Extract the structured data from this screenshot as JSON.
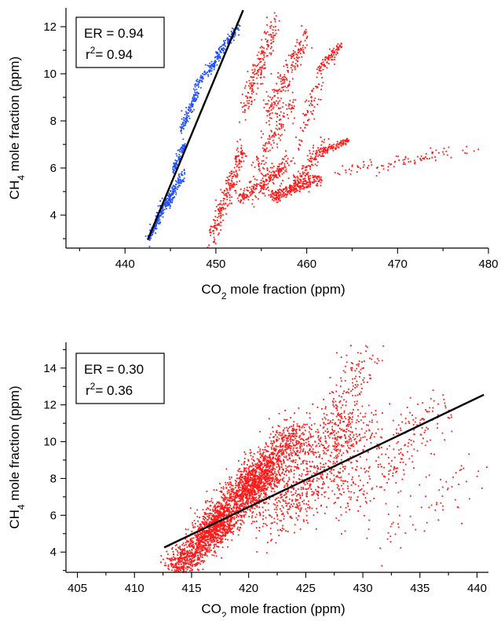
{
  "chart_data": [
    {
      "type": "scatter",
      "title": "",
      "xlabel_parts": [
        "CO",
        "2",
        " mole fraction (ppm)"
      ],
      "ylabel_parts": [
        "CH",
        "4",
        " mole fraction (ppm)"
      ],
      "xlim": [
        433.5,
        480
      ],
      "ylim": [
        2.6,
        12.8
      ],
      "xticks": [
        440,
        450,
        460,
        470,
        480
      ],
      "yticks": [
        4,
        6,
        8,
        10,
        12
      ],
      "grid": false,
      "stats": {
        "er_label": "ER = 0.94",
        "r2_prefix": "r",
        "r2_exp": "2",
        "r2_value": "= 0.94"
      },
      "fit_line": {
        "x": [
          442.5,
          453.0
        ],
        "y": [
          2.95,
          12.7
        ],
        "color": "#000000"
      },
      "series": [
        {
          "color": "#1f4fff",
          "clusters": [
            {
              "x": [
                442.6,
                443.8
              ],
              "y": [
                3.0,
                3.9
              ],
              "n": 90,
              "sx": 0.25,
              "sy": 0.22
            },
            {
              "x": [
                443.5,
                445.0
              ],
              "y": [
                3.9,
                4.8
              ],
              "n": 110,
              "sx": 0.3,
              "sy": 0.25
            },
            {
              "x": [
                444.6,
                446.4
              ],
              "y": [
                4.4,
                5.8
              ],
              "n": 110,
              "sx": 0.3,
              "sy": 0.25
            },
            {
              "x": [
                445.2,
                446.6
              ],
              "y": [
                5.8,
                7.0
              ],
              "n": 90,
              "sx": 0.25,
              "sy": 0.22
            },
            {
              "x": [
                446.2,
                448.0
              ],
              "y": [
                7.6,
                9.3
              ],
              "n": 110,
              "sx": 0.3,
              "sy": 0.22
            },
            {
              "x": [
                447.8,
                450.5
              ],
              "y": [
                9.5,
                10.8
              ],
              "n": 110,
              "sx": 0.35,
              "sy": 0.22
            },
            {
              "x": [
                450.2,
                452.6
              ],
              "y": [
                10.9,
                12.0
              ],
              "n": 90,
              "sx": 0.3,
              "sy": 0.2
            }
          ]
        },
        {
          "color": "#ff1a1a",
          "clusters": [
            {
              "x": [
                449.5,
                453.0
              ],
              "y": [
                3.0,
                6.8
              ],
              "n": 230,
              "sx": 0.6,
              "sy": 0.5
            },
            {
              "x": [
                452.5,
                458.0
              ],
              "y": [
                4.6,
                6.2
              ],
              "n": 240,
              "sx": 0.8,
              "sy": 0.35
            },
            {
              "x": [
                456.0,
                461.5
              ],
              "y": [
                4.7,
                5.6
              ],
              "n": 260,
              "sx": 0.7,
              "sy": 0.25
            },
            {
              "x": [
                458.5,
                462.0
              ],
              "y": [
                5.3,
                7.0
              ],
              "n": 120,
              "sx": 0.5,
              "sy": 0.35
            },
            {
              "x": [
                453.0,
                456.5
              ],
              "y": [
                8.5,
                12.2
              ],
              "n": 190,
              "sx": 0.6,
              "sy": 0.6
            },
            {
              "x": [
                455.5,
                460.0
              ],
              "y": [
                8.2,
                11.6
              ],
              "n": 190,
              "sx": 0.7,
              "sy": 0.6
            },
            {
              "x": [
                461.0,
                463.8
              ],
              "y": [
                10.1,
                11.2
              ],
              "n": 90,
              "sx": 0.4,
              "sy": 0.2
            },
            {
              "x": [
                461.5,
                464.5
              ],
              "y": [
                6.6,
                7.2
              ],
              "n": 90,
              "sx": 0.5,
              "sy": 0.15
            },
            {
              "x": [
                464.0,
                477.5
              ],
              "y": [
                5.8,
                6.8
              ],
              "n": 90,
              "sx": 3.0,
              "sy": 0.25
            },
            {
              "x": [
                454.5,
                458.5
              ],
              "y": [
                6.0,
                8.8
              ],
              "n": 130,
              "sx": 0.7,
              "sy": 0.6
            },
            {
              "x": [
                459.0,
                461.5
              ],
              "y": [
                7.0,
                9.8
              ],
              "n": 70,
              "sx": 0.5,
              "sy": 0.6
            }
          ]
        }
      ]
    },
    {
      "type": "scatter",
      "title": "",
      "xlabel_parts": [
        "CO",
        "2",
        " mole fraction (ppm)"
      ],
      "ylabel_parts": [
        "CH",
        "4",
        " mole fraction (ppm)"
      ],
      "xlim": [
        404,
        441
      ],
      "ylim": [
        2.9,
        15.4
      ],
      "xticks": [
        405,
        410,
        415,
        420,
        425,
        430,
        435,
        440
      ],
      "yticks": [
        4,
        6,
        8,
        10,
        12,
        14
      ],
      "grid": false,
      "stats": {
        "er_label": "ER = 0.30",
        "r2_prefix": "r",
        "r2_exp": "2",
        "r2_value": "= 0.36"
      },
      "fit_line": {
        "x": [
          412.6,
          440.6
        ],
        "y": [
          4.25,
          12.55
        ],
        "color": "#000000"
      },
      "series": [
        {
          "color": "#ff1a1a",
          "clusters": [
            {
              "x": [
                413.5,
                418.0
              ],
              "y": [
                3.0,
                6.0
              ],
              "n": 900,
              "sx": 1.3,
              "sy": 0.9
            },
            {
              "x": [
                416.5,
                421.5
              ],
              "y": [
                5.0,
                8.5
              ],
              "n": 1100,
              "sx": 1.5,
              "sy": 1.1
            },
            {
              "x": [
                419.5,
                424.5
              ],
              "y": [
                7.0,
                10.5
              ],
              "n": 900,
              "sx": 1.6,
              "sy": 1.1
            },
            {
              "x": [
                422.0,
                430.0
              ],
              "y": [
                5.5,
                11.0
              ],
              "n": 650,
              "sx": 2.3,
              "sy": 1.5
            },
            {
              "x": [
                425.5,
                431.0
              ],
              "y": [
                9.5,
                15.3
              ],
              "n": 220,
              "sx": 1.5,
              "sy": 1.5
            },
            {
              "x": [
                428.0,
                436.5
              ],
              "y": [
                6.5,
                11.8
              ],
              "n": 240,
              "sx": 2.3,
              "sy": 1.4
            },
            {
              "x": [
                431.0,
                440.5
              ],
              "y": [
                4.7,
                8.7
              ],
              "n": 70,
              "sx": 2.5,
              "sy": 1.1
            }
          ]
        }
      ]
    }
  ]
}
